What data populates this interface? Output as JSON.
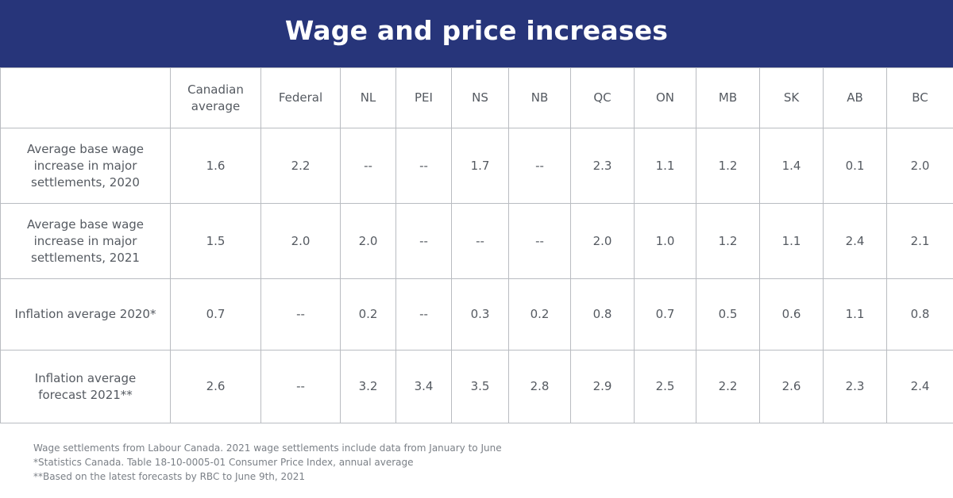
{
  "title": "Wage and price increases",
  "chart_data": {
    "type": "table",
    "columns": [
      "Canadian average",
      "Federal",
      "NL",
      "PEI",
      "NS",
      "NB",
      "QC",
      "ON",
      "MB",
      "SK",
      "AB",
      "BC"
    ],
    "rows": [
      {
        "label_lines": [
          "Average base wage",
          "increase in major",
          "settlements, 2020"
        ],
        "values": [
          "1.6",
          "2.2",
          "--",
          "--",
          "1.7",
          "--",
          "2.3",
          "1.1",
          "1.2",
          "1.4",
          "0.1",
          "2.0"
        ]
      },
      {
        "label_lines": [
          "Average base wage",
          "increase in major",
          "settlements, 2021"
        ],
        "values": [
          "1.5",
          "2.0",
          "2.0",
          "--",
          "--",
          "--",
          "2.0",
          "1.0",
          "1.2",
          "1.1",
          "2.4",
          "2.1"
        ]
      },
      {
        "label_lines": [
          "Inflation average 2020*"
        ],
        "values": [
          "0.7",
          "--",
          "0.2",
          "--",
          "0.3",
          "0.2",
          "0.8",
          "0.7",
          "0.5",
          "0.6",
          "1.1",
          "0.8"
        ]
      },
      {
        "label_lines": [
          "Inflation average",
          "forecast 2021**"
        ],
        "values": [
          "2.6",
          "--",
          "3.2",
          "3.4",
          "3.5",
          "2.8",
          "2.9",
          "2.5",
          "2.2",
          "2.6",
          "2.3",
          "2.4"
        ]
      }
    ]
  },
  "notes": [
    "Wage settlements from Labour Canada. 2021 wage settlements include data from January to June",
    "*Statistics Canada. Table 18-10-0005-01 Consumer Price Index, annual average",
    "**Based on the latest forecasts by RBC to June 9th, 2021"
  ],
  "colors": {
    "header_background": "#27357a",
    "header_text": "#ffffff",
    "table_text": "#555a61",
    "grid_lines": "#b9bcc1",
    "notes_text": "#7b8087"
  }
}
